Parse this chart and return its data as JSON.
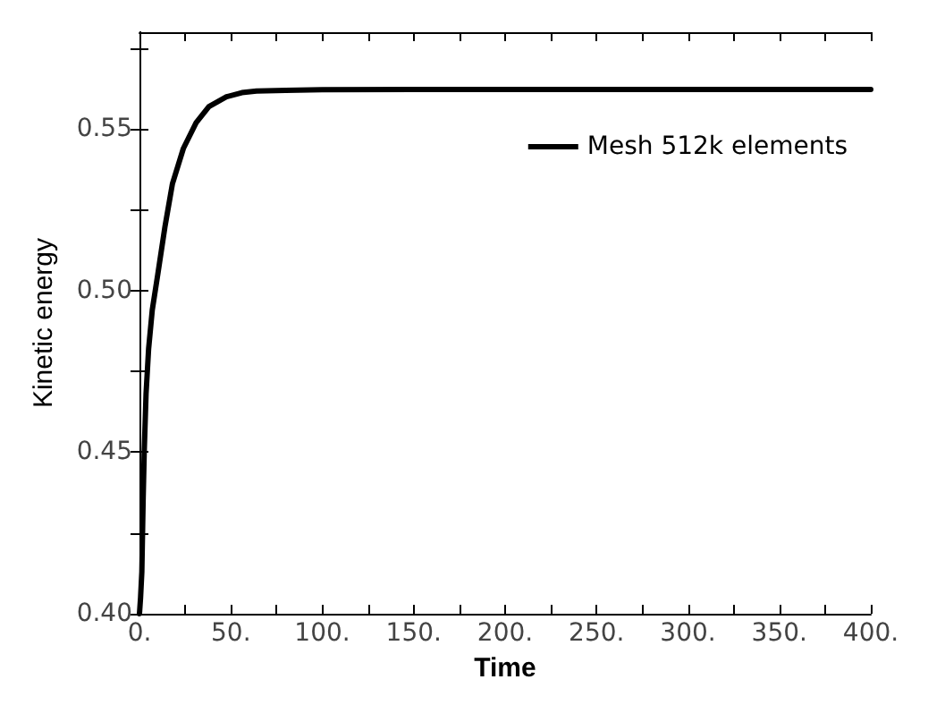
{
  "chart_data": {
    "type": "line",
    "xlabel": "Time",
    "ylabel": "Kinetic energy",
    "x": [
      0,
      0.6,
      1.3,
      2,
      2.6,
      3.6,
      5,
      7,
      10,
      14,
      18,
      24,
      31,
      38,
      47.6,
      56,
      64,
      80,
      100,
      150,
      200,
      300,
      400
    ],
    "series": [
      {
        "name": "Mesh 512k elements",
        "color": "#000000",
        "values": [
          0.4,
          0.405,
          0.413,
          0.435,
          0.45,
          0.468,
          0.482,
          0.494,
          0.505,
          0.52,
          0.533,
          0.544,
          0.552,
          0.557,
          0.56,
          0.5613,
          0.5618,
          0.562,
          0.5622,
          0.5623,
          0.5623,
          0.5623,
          0.5623
        ]
      }
    ],
    "xlim": [
      0,
      400
    ],
    "xticks": [
      {
        "value": 0,
        "label": "0."
      },
      {
        "value": 25,
        "label": null
      },
      {
        "value": 50,
        "label": "50."
      },
      {
        "value": 75,
        "label": null
      },
      {
        "value": 100,
        "label": "100."
      },
      {
        "value": 125,
        "label": null
      },
      {
        "value": 150,
        "label": "150."
      },
      {
        "value": 175,
        "label": null
      },
      {
        "value": 200,
        "label": "200."
      },
      {
        "value": 225,
        "label": null
      },
      {
        "value": 250,
        "label": "250."
      },
      {
        "value": 275,
        "label": null
      },
      {
        "value": 300,
        "label": "300."
      },
      {
        "value": 325,
        "label": null
      },
      {
        "value": 350,
        "label": "350."
      },
      {
        "value": 375,
        "label": null
      },
      {
        "value": 400,
        "label": "400."
      }
    ],
    "ylim": [
      0.4,
      0.58
    ],
    "yticks": [
      {
        "value": 0.4,
        "label": "0.40"
      },
      {
        "value": 0.425,
        "label": null
      },
      {
        "value": 0.45,
        "label": "0.45"
      },
      {
        "value": 0.475,
        "label": null
      },
      {
        "value": 0.5,
        "label": "0.50"
      },
      {
        "value": 0.525,
        "label": null
      },
      {
        "value": 0.55,
        "label": "0.55"
      },
      {
        "value": 0.575,
        "label": null
      }
    ],
    "grid": false,
    "legend": "top right",
    "marker": "none",
    "line_style": "solid"
  }
}
